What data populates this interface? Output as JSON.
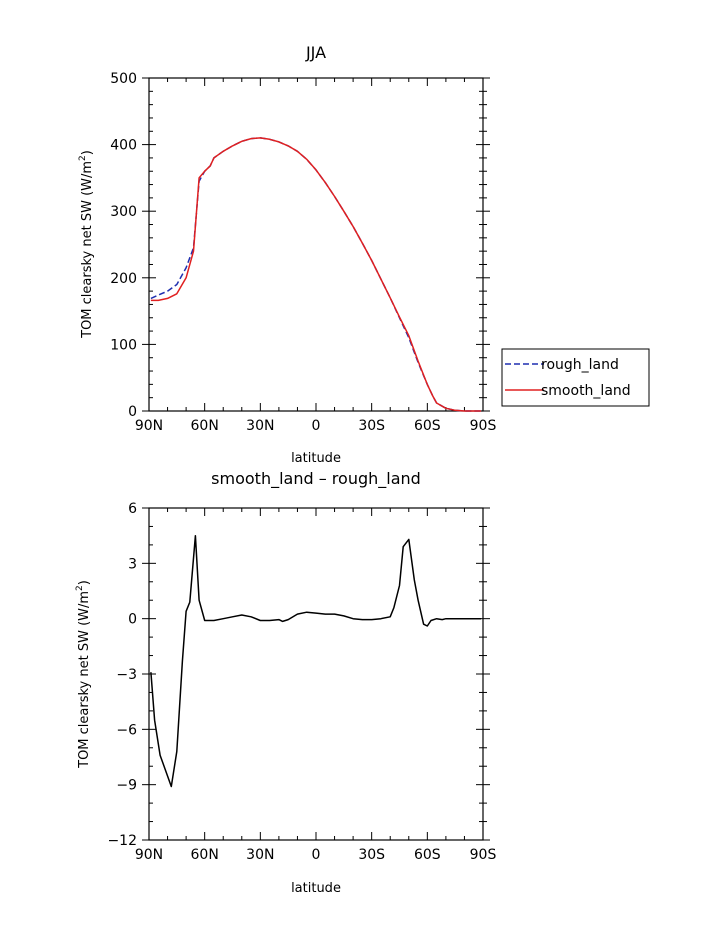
{
  "chart_data": [
    {
      "type": "line",
      "title": "JJA",
      "xlabel": "latitude",
      "ylabel": "TOM clearsky net SW (W/m²)",
      "ylabel_parts": {
        "main": "TOM clearsky net SW (W/m",
        "sup": "2",
        "end": ")"
      },
      "xlim": [
        90,
        -90
      ],
      "ylim": [
        0,
        500
      ],
      "x_ticks": [
        90,
        60,
        30,
        0,
        -30,
        -60,
        -90
      ],
      "x_tick_labels": [
        "90N",
        "60N",
        "30N",
        "0",
        "30S",
        "60S",
        "90S"
      ],
      "y_ticks": [
        0,
        100,
        200,
        300,
        400,
        500
      ],
      "y_tick_labels": [
        "0",
        "100",
        "200",
        "300",
        "400",
        "500"
      ],
      "legend_position": "right",
      "series": [
        {
          "name": "rough_land",
          "color": "#1f2fb0",
          "dash": "dashed",
          "x": [
            89,
            85,
            80,
            75,
            70,
            66,
            63,
            60,
            57,
            55,
            50,
            45,
            40,
            35,
            30,
            25,
            20,
            15,
            10,
            5,
            0,
            -5,
            -10,
            -15,
            -20,
            -25,
            -30,
            -35,
            -40,
            -45,
            -50,
            -55,
            -60,
            -63,
            -65,
            -70,
            -75,
            -80,
            -85,
            -89
          ],
          "y": [
            169,
            174,
            180,
            190,
            215,
            245,
            345,
            360,
            368,
            380,
            390,
            398,
            405,
            409,
            410,
            408,
            404,
            398,
            390,
            378,
            362,
            343,
            322,
            300,
            277,
            252,
            226,
            198,
            170,
            140,
            110,
            73,
            40,
            22,
            12,
            4,
            1,
            0,
            0,
            0
          ]
        },
        {
          "name": "smooth_land",
          "color": "#e02020",
          "dash": "solid",
          "x": [
            89,
            85,
            80,
            75,
            70,
            66,
            63,
            60,
            57,
            55,
            50,
            45,
            40,
            35,
            30,
            25,
            20,
            15,
            10,
            5,
            0,
            -5,
            -10,
            -15,
            -20,
            -25,
            -30,
            -35,
            -40,
            -45,
            -50,
            -55,
            -60,
            -63,
            -65,
            -70,
            -75,
            -80,
            -85,
            -89
          ],
          "y": [
            166,
            166,
            169,
            176,
            200,
            240,
            350,
            360,
            368,
            380,
            390,
            398,
            405,
            409,
            410,
            408,
            404,
            398,
            390,
            378,
            362,
            343,
            322,
            300,
            277,
            252,
            226,
            198,
            170,
            141,
            113,
            75,
            40,
            22,
            12,
            4,
            1,
            0,
            0,
            0
          ]
        }
      ]
    },
    {
      "type": "line",
      "title": "smooth_land – rough_land",
      "xlabel": "latitude",
      "ylabel": "TOM clearsky net SW (W/m²)",
      "ylabel_parts": {
        "main": "TOM clearsky net SW (W/m",
        "sup": "2",
        "end": ")"
      },
      "xlim": [
        90,
        -90
      ],
      "ylim": [
        -12,
        6
      ],
      "x_ticks": [
        90,
        60,
        30,
        0,
        -30,
        -60,
        -90
      ],
      "x_tick_labels": [
        "90N",
        "60N",
        "30N",
        "0",
        "30S",
        "60S",
        "90S"
      ],
      "y_ticks": [
        -12,
        -9,
        -6,
        -3,
        0,
        3,
        6
      ],
      "y_tick_labels": [
        "−12",
        "−9",
        "−6",
        "−3",
        "0",
        "3",
        "6"
      ],
      "series": [
        {
          "color": "#000000",
          "dash": "solid",
          "x": [
            89,
            87,
            84,
            78,
            75,
            72,
            70,
            68,
            65,
            63,
            60,
            58,
            55,
            50,
            45,
            40,
            35,
            30,
            25,
            20,
            18,
            15,
            10,
            5,
            0,
            -5,
            -10,
            -15,
            -20,
            -25,
            -30,
            -35,
            -40,
            -42,
            -45,
            -47,
            -50,
            -53,
            -55,
            -58,
            -60,
            -62,
            -65,
            -68,
            -70,
            -75,
            -80,
            -85,
            -89
          ],
          "y": [
            -2.9,
            -5.5,
            -7.4,
            -9.1,
            -7.2,
            -2.3,
            0.4,
            0.9,
            4.5,
            1.0,
            -0.1,
            -0.1,
            -0.1,
            0.0,
            0.1,
            0.2,
            0.1,
            -0.1,
            -0.1,
            -0.05,
            -0.15,
            -0.05,
            0.25,
            0.35,
            0.3,
            0.25,
            0.25,
            0.15,
            0.0,
            -0.05,
            -0.05,
            0.0,
            0.1,
            0.6,
            1.8,
            3.9,
            4.3,
            2.1,
            1.0,
            -0.3,
            -0.4,
            -0.1,
            0.0,
            -0.05,
            0.0,
            0.0,
            0.0,
            0.0,
            0.0
          ]
        }
      ]
    }
  ]
}
